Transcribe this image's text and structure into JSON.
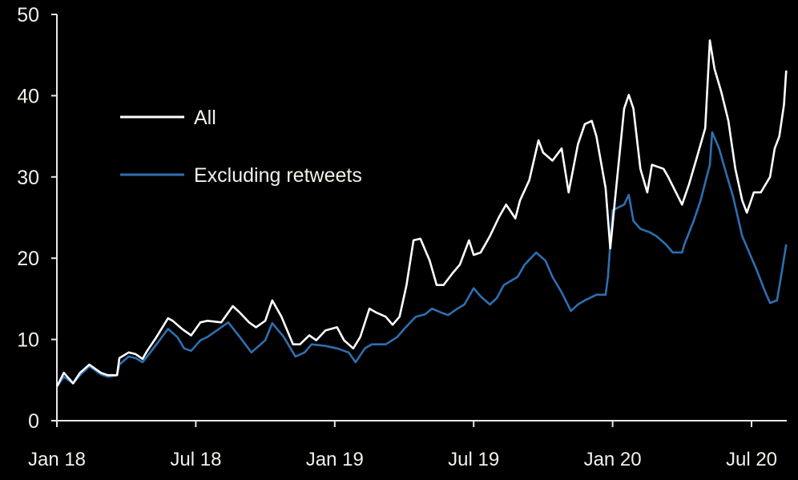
{
  "chart_data": {
    "type": "line",
    "title": "",
    "xlabel": "",
    "ylabel": "",
    "x_unit": "months since Jan 2018",
    "xlim": [
      0,
      31.5
    ],
    "ylim": [
      0,
      50
    ],
    "yticks": [
      0,
      10,
      20,
      30,
      40,
      50
    ],
    "xticks": [
      {
        "x": 0,
        "label": "Jan 18"
      },
      {
        "x": 6,
        "label": "Jul 18"
      },
      {
        "x": 12,
        "label": "Jan 19"
      },
      {
        "x": 18,
        "label": "Jul 19"
      },
      {
        "x": 24,
        "label": "Jan 20"
      },
      {
        "x": 30,
        "label": "Jul 20"
      }
    ],
    "grid": false,
    "legend_position": "top-left",
    "series": [
      {
        "name": "All",
        "color": "#ffffff",
        "x": [
          0.0,
          0.3,
          0.7,
          1.0,
          1.4,
          1.9,
          2.2,
          2.6,
          2.7,
          3.1,
          3.4,
          3.7,
          3.9,
          4.3,
          4.8,
          5.0,
          5.4,
          5.8,
          6.2,
          6.5,
          7.1,
          7.6,
          7.9,
          8.3,
          8.6,
          9.0,
          9.3,
          9.7,
          10.2,
          10.5,
          10.9,
          11.2,
          11.6,
          12.1,
          12.4,
          12.8,
          13.1,
          13.5,
          13.8,
          14.2,
          14.5,
          14.8,
          15.1,
          15.4,
          15.7,
          16.1,
          16.4,
          16.7,
          17.1,
          17.4,
          17.8,
          18.0,
          18.3,
          18.7,
          19.1,
          19.4,
          19.8,
          20.0,
          20.4,
          20.8,
          21.0,
          21.4,
          21.8,
          22.1,
          22.5,
          22.8,
          23.1,
          23.3,
          23.7,
          23.9,
          24.1,
          24.5,
          24.7,
          24.9,
          25.2,
          25.5,
          25.7,
          26.2,
          26.4,
          27.0,
          27.3,
          27.6,
          28.0,
          28.2,
          28.4,
          28.7,
          29.0,
          29.3,
          29.6,
          29.8,
          30.1,
          30.4,
          30.8,
          31.0,
          31.2,
          31.4,
          31.5
        ],
        "values": [
          4.2,
          5.9,
          4.6,
          5.9,
          6.9,
          5.9,
          5.6,
          5.6,
          7.7,
          8.4,
          8.2,
          7.6,
          8.6,
          10.3,
          12.6,
          12.3,
          11.3,
          10.5,
          12.1,
          12.3,
          12.1,
          14.1,
          13.3,
          12.1,
          11.5,
          12.3,
          14.8,
          12.8,
          9.4,
          9.4,
          10.5,
          9.9,
          11.1,
          11.5,
          9.9,
          8.9,
          10.3,
          13.8,
          13.3,
          12.8,
          11.8,
          12.8,
          16.7,
          22.2,
          22.4,
          19.7,
          16.7,
          16.7,
          18.2,
          19.2,
          22.2,
          20.4,
          20.7,
          22.7,
          25.1,
          26.6,
          24.9,
          27.1,
          29.6,
          34.5,
          33.0,
          32.0,
          33.5,
          28.1,
          34.0,
          36.5,
          36.9,
          35.0,
          28.6,
          21.2,
          27.1,
          38.4,
          40.1,
          38.4,
          31.0,
          28.1,
          31.5,
          31.0,
          30.0,
          26.6,
          29.1,
          32.0,
          36.0,
          46.8,
          43.3,
          40.4,
          36.9,
          31.0,
          27.1,
          25.6,
          28.1,
          28.1,
          30.0,
          33.5,
          35.0,
          38.9,
          43.1
        ]
      },
      {
        "name": "Excluding retweets",
        "color": "#2f6fb0",
        "x": [
          0.0,
          0.3,
          0.7,
          1.0,
          1.4,
          1.9,
          2.2,
          2.6,
          2.7,
          3.1,
          3.4,
          3.7,
          3.9,
          4.3,
          4.8,
          5.2,
          5.5,
          5.8,
          6.2,
          6.5,
          7.0,
          7.4,
          7.9,
          8.4,
          9.0,
          9.3,
          9.8,
          10.3,
          10.7,
          11.0,
          11.6,
          12.1,
          12.6,
          12.9,
          13.3,
          13.6,
          14.2,
          14.7,
          15.0,
          15.5,
          15.9,
          16.2,
          16.6,
          16.9,
          17.3,
          17.6,
          18.0,
          18.3,
          18.7,
          19.0,
          19.3,
          19.9,
          20.2,
          20.7,
          21.1,
          21.4,
          21.8,
          22.2,
          22.5,
          22.8,
          23.3,
          23.7,
          23.8,
          24.0,
          24.5,
          24.7,
          24.9,
          25.2,
          25.6,
          25.9,
          26.3,
          26.6,
          27.0,
          27.1,
          27.5,
          27.8,
          28.2,
          28.3,
          28.6,
          28.9,
          29.2,
          29.6,
          29.9,
          30.2,
          30.6,
          30.8,
          31.1,
          31.3,
          31.5
        ],
        "values": [
          4.2,
          5.4,
          4.6,
          5.6,
          6.7,
          5.7,
          5.4,
          5.6,
          6.9,
          7.9,
          7.7,
          7.2,
          7.9,
          9.4,
          11.3,
          10.3,
          8.9,
          8.6,
          9.9,
          10.3,
          11.3,
          12.1,
          10.3,
          8.4,
          9.9,
          12.0,
          10.3,
          7.9,
          8.4,
          9.4,
          9.2,
          8.9,
          8.4,
          7.2,
          8.9,
          9.4,
          9.4,
          10.3,
          11.3,
          12.8,
          13.1,
          13.8,
          13.3,
          13.0,
          13.8,
          14.3,
          16.3,
          15.3,
          14.3,
          15.1,
          16.7,
          17.7,
          19.2,
          20.7,
          19.7,
          17.7,
          15.8,
          13.5,
          14.3,
          14.8,
          15.5,
          15.5,
          17.7,
          25.9,
          26.6,
          27.8,
          24.6,
          23.6,
          23.2,
          22.7,
          21.7,
          20.7,
          20.7,
          21.7,
          24.6,
          27.1,
          31.5,
          35.5,
          33.5,
          30.5,
          27.6,
          22.7,
          20.7,
          18.7,
          15.8,
          14.5,
          14.8,
          18.2,
          21.7
        ]
      }
    ]
  }
}
